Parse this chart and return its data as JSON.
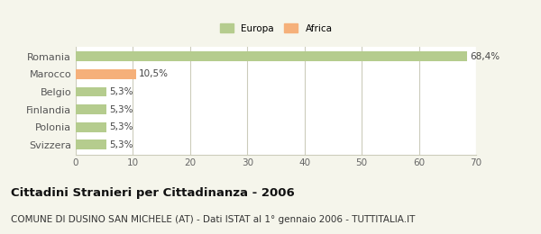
{
  "categories": [
    "Svizzera",
    "Polonia",
    "Finlandia",
    "Belgio",
    "Marocco",
    "Romania"
  ],
  "values": [
    5.3,
    5.3,
    5.3,
    5.3,
    10.5,
    68.4
  ],
  "bar_colors": [
    "#b5cc8e",
    "#b5cc8e",
    "#b5cc8e",
    "#b5cc8e",
    "#f5b07a",
    "#b5cc8e"
  ],
  "labels": [
    "5,3%",
    "5,3%",
    "5,3%",
    "5,3%",
    "10,5%",
    "68,4%"
  ],
  "legend": [
    {
      "label": "Europa",
      "color": "#b5cc8e"
    },
    {
      "label": "Africa",
      "color": "#f5b07a"
    }
  ],
  "xlim": [
    0,
    70
  ],
  "xticks": [
    0,
    10,
    20,
    30,
    40,
    50,
    60,
    70
  ],
  "title": "Cittadini Stranieri per Cittadinanza - 2006",
  "subtitle": "COMUNE DI DUSINO SAN MICHELE (AT) - Dati ISTAT al 1° gennaio 2006 - TUTTITALIA.IT",
  "background_color": "#f5f5eb",
  "plot_bg_color": "#ffffff",
  "grid_color": "#ccccbb",
  "title_fontsize": 9.5,
  "subtitle_fontsize": 7.5,
  "label_fontsize": 7.5,
  "tick_fontsize": 7.5,
  "category_fontsize": 8
}
